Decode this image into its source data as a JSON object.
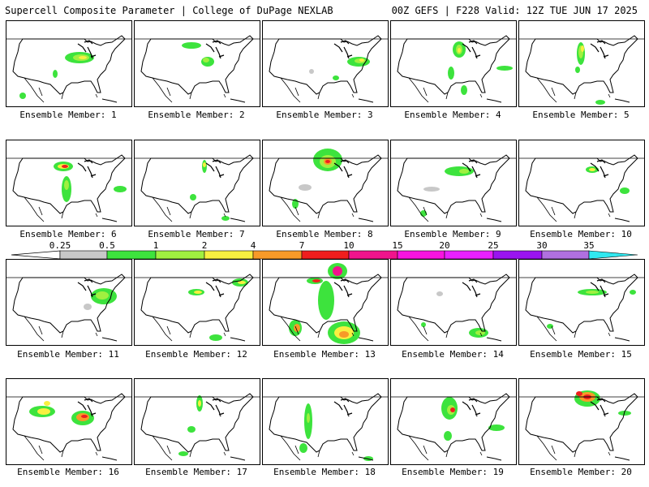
{
  "header": {
    "left": "Supercell Composite Parameter | College of DuPage NEXLAB",
    "right": "00Z GEFS | F228 Valid: 12Z TUE JUN 17 2025"
  },
  "colorbar": {
    "labels": [
      "0.25",
      "0.5",
      "1",
      "2",
      "4",
      "7",
      "10",
      "15",
      "20",
      "25",
      "30",
      "35"
    ],
    "colors": [
      "#c8c8c8",
      "#3de33d",
      "#a0f040",
      "#f8f040",
      "#f89a28",
      "#f01e1e",
      "#f0148c",
      "#f814e0",
      "#e820ff",
      "#9a14f0",
      "#b070e0",
      "#30e8f0"
    ]
  },
  "members": [
    {
      "label": "Ensemble Member: 1"
    },
    {
      "label": "Ensemble Member: 2"
    },
    {
      "label": "Ensemble Member: 3"
    },
    {
      "label": "Ensemble Member: 4"
    },
    {
      "label": "Ensemble Member: 5"
    },
    {
      "label": "Ensemble Member: 6"
    },
    {
      "label": "Ensemble Member: 7"
    },
    {
      "label": "Ensemble Member: 8"
    },
    {
      "label": "Ensemble Member: 9"
    },
    {
      "label": "Ensemble Member: 10"
    },
    {
      "label": "Ensemble Member: 11"
    },
    {
      "label": "Ensemble Member: 12"
    },
    {
      "label": "Ensemble Member: 13"
    },
    {
      "label": "Ensemble Member: 14"
    },
    {
      "label": "Ensemble Member: 15"
    },
    {
      "label": "Ensemble Member: 16"
    },
    {
      "label": "Ensemble Member: 17"
    },
    {
      "label": "Ensemble Member: 18"
    },
    {
      "label": "Ensemble Member: 19"
    },
    {
      "label": "Ensemble Member: 20"
    }
  ]
}
